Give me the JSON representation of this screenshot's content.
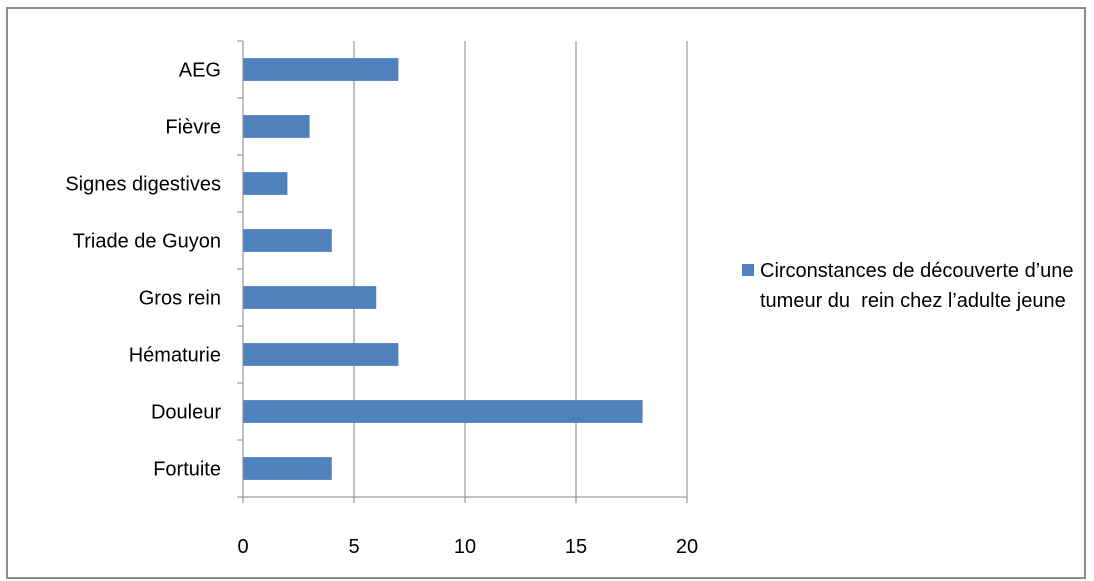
{
  "chart_data": {
    "type": "bar",
    "orientation": "horizontal",
    "categories": [
      "AEG",
      "Fièvre",
      "Signes digestives",
      "Triade de Guyon",
      "Gros rein",
      "Hématurie",
      "Douleur",
      "Fortuite"
    ],
    "series": [
      {
        "name": "Circonstances de découverte d’une tumeur du  rein chez l’adulte jeune",
        "values": [
          7,
          3,
          2,
          4,
          6,
          7,
          18,
          4
        ],
        "color": "#4f81bd"
      }
    ],
    "xlim": [
      0,
      20
    ],
    "xticks": [
      0,
      5,
      10,
      15,
      20
    ],
    "grid": true,
    "legend_position": "right"
  }
}
